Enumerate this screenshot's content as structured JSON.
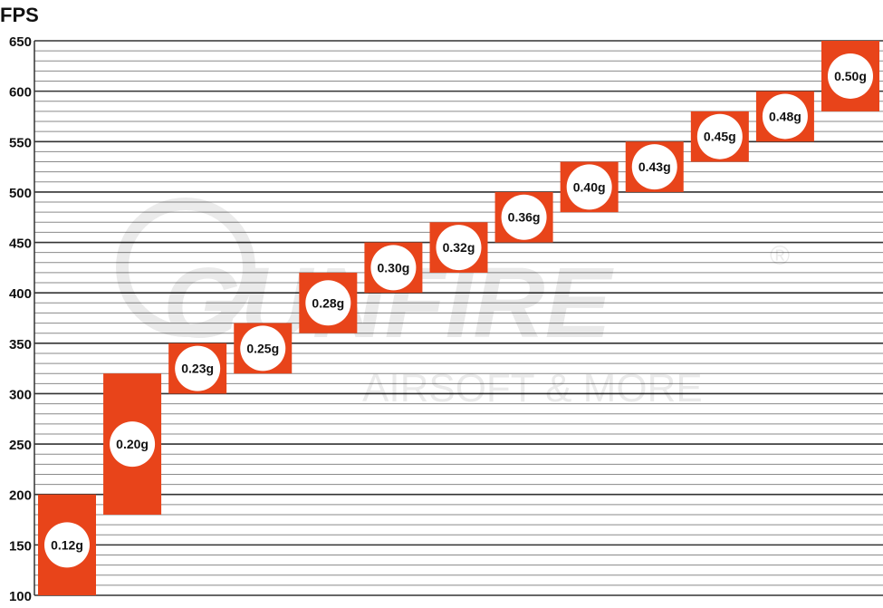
{
  "chart_data": {
    "type": "bar",
    "subtype": "floating-range",
    "ylabel": "FPS",
    "ylim": [
      100,
      650
    ],
    "yticks": [
      100,
      150,
      200,
      250,
      300,
      350,
      400,
      450,
      500,
      550,
      600,
      650
    ],
    "minor_grid_step": 10,
    "grid": true,
    "categories": [
      "0.12g",
      "0.20g",
      "0.23g",
      "0.25g",
      "0.28g",
      "0.30g",
      "0.32g",
      "0.36g",
      "0.40g",
      "0.43g",
      "0.45g",
      "0.48g",
      "0.50g"
    ],
    "ranges": [
      [
        100,
        200
      ],
      [
        180,
        320
      ],
      [
        300,
        350
      ],
      [
        320,
        370
      ],
      [
        360,
        420
      ],
      [
        400,
        450
      ],
      [
        420,
        470
      ],
      [
        450,
        500
      ],
      [
        480,
        530
      ],
      [
        500,
        550
      ],
      [
        530,
        580
      ],
      [
        550,
        600
      ],
      [
        580,
        650
      ]
    ],
    "colors": {
      "bar": "#e8441a",
      "label_circle": "#ffffff",
      "major_grid": "#333333",
      "minor_grid": "#8a8a8a"
    },
    "watermark": {
      "brand": "GUNFIRE",
      "tagline": "AIRSOFT & MORE",
      "mark": "®"
    }
  }
}
